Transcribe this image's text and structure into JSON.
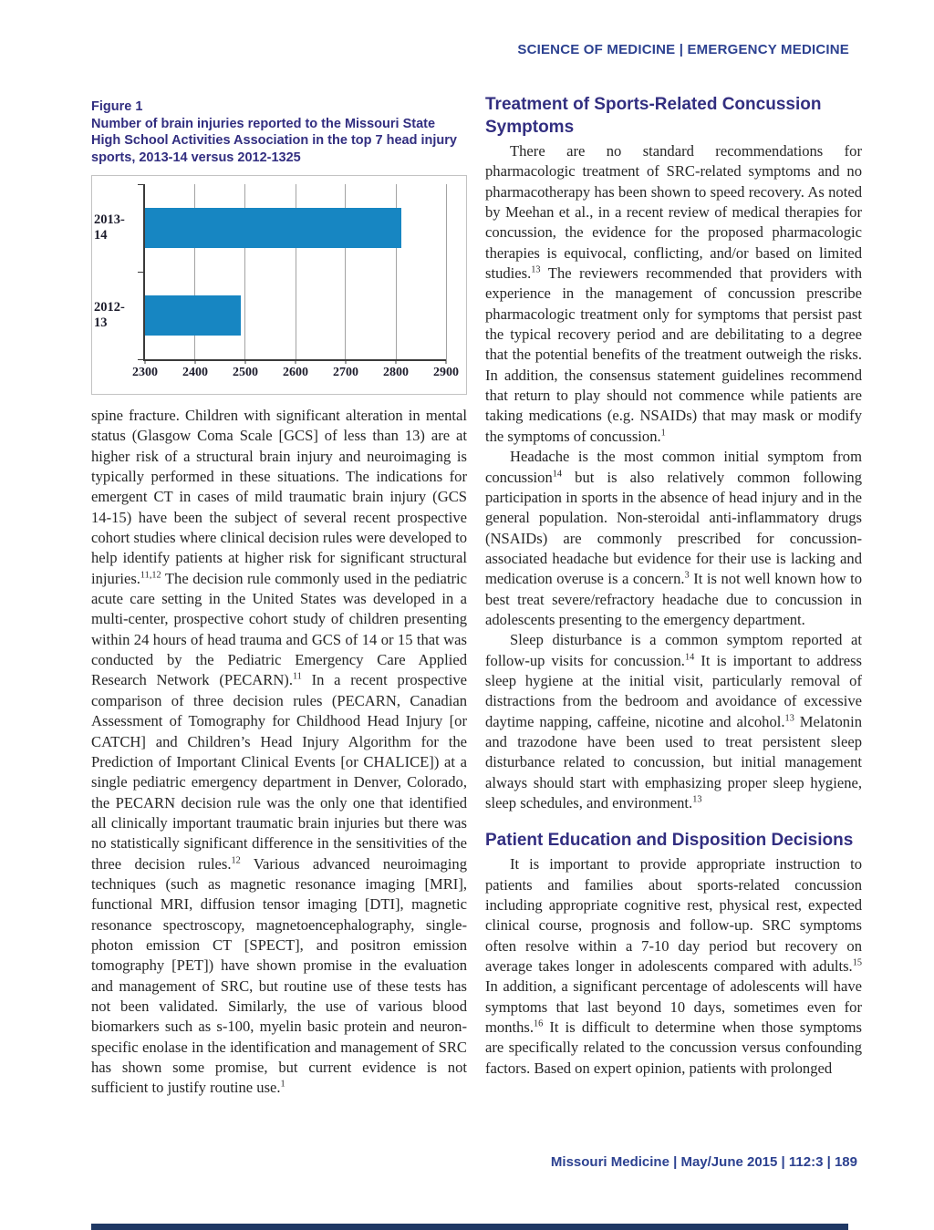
{
  "header": {
    "label": "SCIENCE OF MEDICINE | EMERGENCY MEDICINE"
  },
  "figure": {
    "label": "Figure 1",
    "caption": "Number of brain injuries reported to the Missouri State High School Activities Association in the top 7 head injury sports, 2013-14 versus 2012-1325"
  },
  "chart_data": {
    "type": "bar",
    "orientation": "horizontal",
    "categories": [
      "2013-14",
      "2012-13"
    ],
    "values": [
      2810,
      2490
    ],
    "xlim": [
      2300,
      2900
    ],
    "xticks": [
      2300,
      2400,
      2500,
      2600,
      2700,
      2800,
      2900
    ],
    "grid": true,
    "legend": false,
    "bar_color": "#1786c2",
    "axis_color": "#3a3a3a",
    "gridline_color": "#a3a3a3"
  },
  "left_column": {
    "text": "spine fracture.  Children with significant alteration in mental status (Glasgow Coma Scale [GCS] of less than 13) are at higher risk of a structural brain injury and neuroimaging is typically performed in these situations. The indications for emergent CT in cases of mild traumatic brain injury (GCS 14-15) have been the subject of several recent prospective cohort studies where clinical decision rules were developed to help identify patients at higher risk for significant structural injuries.^11,12^  The decision rule commonly used in the pediatric acute care setting in the United States was developed in a multi-center, prospective cohort study of children presenting within 24 hours of head trauma and GCS of 14 or 15 that was conducted by the Pediatric Emergency Care Applied Research Network (PECARN).^11^  In a recent prospective comparison of three decision rules (PECARN, Canadian Assessment of Tomography for Childhood Head Injury [or CATCH] and Children’s Head Injury Algorithm for the Prediction of Important Clinical Events [or CHALICE]) at a single pediatric emergency department in Denver, Colorado, the PECARN decision rule was the only one that identified all clinically important traumatic brain injuries but there was no statistically significant difference in the sensitivities of the three decision rules.^12^ Various advanced neuroimaging techniques (such as magnetic resonance imaging [MRI], functional MRI, diffusion tensor imaging [DTI], magnetic resonance spectroscopy, magnetoencephalography, single-photon emission CT [SPECT], and positron emission tomography [PET]) have shown promise in the evaluation and management of SRC, but routine use of these tests has not been validated.  Similarly, the use of various blood biomarkers such as s-100, myelin basic protein and neuron-specific enolase in the identification and management of SRC has shown some promise, but current evidence is not sufficient to justify routine use.^1^"
  },
  "right_column": {
    "sections": [
      {
        "heading": "Treatment of Sports-Related Concussion Symptoms",
        "paragraphs": [
          "There are no standard recommendations for pharmacologic treatment of SRC-related symptoms and no pharmacotherapy has been shown to speed recovery. As noted by Meehan et al., in a recent review of medical therapies for concussion, the evidence for the proposed pharmacologic therapies is equivocal, conflicting, and/or based on limited studies.^13^ The reviewers recommended that providers with experience in the management of concussion prescribe pharmacologic treatment only for symptoms that persist past the typical recovery period and are debilitating to a degree that the potential benefits of the treatment outweigh the risks.  In addition, the consensus statement guidelines recommend that return to play should not commence while patients are taking medications (e.g. NSAIDs) that may mask or modify the symptoms of concussion.^1^",
          "Headache is the most common initial symptom from concussion^14^ but is also relatively common following participation in sports in the absence of head injury and in the general population.  Non-steroidal anti-inflammatory drugs (NSAIDs) are commonly prescribed for concussion-associated headache but evidence for their use is lacking and medication overuse is a concern.^3^   It is not well known how to best treat severe/refractory headache due to concussion in adolescents presenting to the emergency department.",
          "Sleep disturbance is a common symptom reported at follow-up visits for concussion.^14^ It is important to address sleep hygiene at the initial visit, particularly removal of distractions from the bedroom and avoidance of excessive daytime napping, caffeine, nicotine and alcohol.^13^ Melatonin and trazodone have been used to treat persistent sleep disturbance related to concussion, but initial management always should start with emphasizing proper sleep hygiene, sleep schedules, and environment.^13^"
        ]
      },
      {
        "heading": "Patient Education and Disposition Decisions",
        "paragraphs": [
          "It is important to provide appropriate instruction to patients and families about sports-related concussion including appropriate cognitive rest, physical rest, expected clinical course, prognosis and follow-up.  SRC symptoms often resolve within a 7-10 day period but recovery on average takes longer in adolescents compared with adults.^15^ In addition, a significant percentage of adolescents will have symptoms that last beyond 10 days, sometimes even for months.^16^   It is difficult to determine when those symptoms are specifically related to the concussion versus confounding factors.  Based on expert opinion, patients with prolonged"
        ]
      }
    ]
  },
  "footer": {
    "label": "Missouri Medicine | May/June 2015 | 112:3 | 189"
  }
}
